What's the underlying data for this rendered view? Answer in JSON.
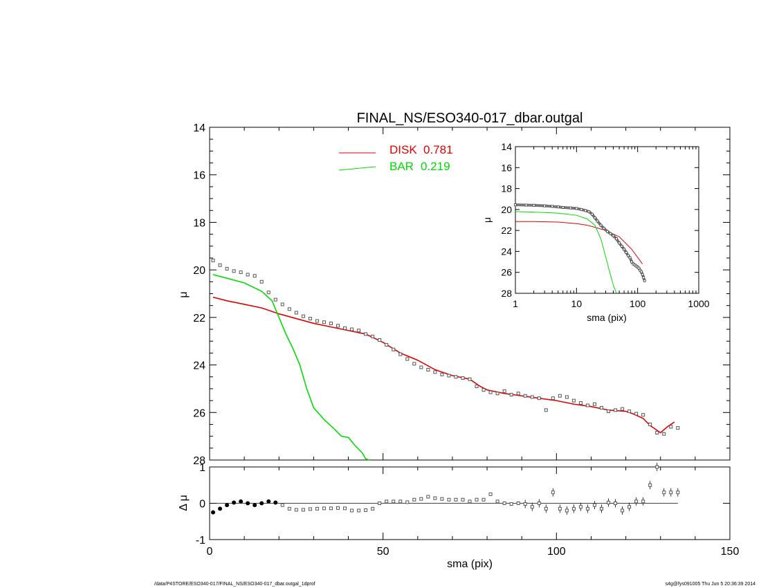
{
  "footer": {
    "path": "/data/P4STORE/ESO340-017/FINAL_NS/ESO340-017_dbar.outgal_1dprof",
    "stamp": "s4g@fys091005  Thu Jun  5 20:36:39 2014"
  },
  "colors": {
    "disk": "#e00000",
    "bar": "#00dd00",
    "data": "#555555",
    "axis": "#000000"
  },
  "chart_data": [
    {
      "type": "line",
      "title": "FINAL_NS/ESO340-017_dbar.outgal",
      "xlabel": "",
      "ylabel": "μ",
      "xlim": [
        0,
        150
      ],
      "ylim": [
        28,
        14
      ],
      "y_inverted": true,
      "yticks": [
        14,
        16,
        18,
        20,
        22,
        24,
        26,
        28
      ],
      "grid": false,
      "legend_position": "top-center",
      "legend": [
        {
          "label": "DISK",
          "value": "0.781",
          "color": "#e00000"
        },
        {
          "label": "BAR",
          "value": "0.219",
          "color": "#00dd00"
        }
      ],
      "series": [
        {
          "name": "DISK",
          "x": [
            1,
            5,
            10,
            15,
            20,
            25,
            30,
            35,
            40,
            45,
            50,
            55,
            60,
            65,
            70,
            75,
            78,
            80,
            85,
            90,
            95,
            100,
            105,
            110,
            115,
            120,
            122,
            125,
            127,
            130,
            132,
            134
          ],
          "y": [
            21.15,
            21.3,
            21.45,
            21.6,
            21.85,
            22.05,
            22.25,
            22.4,
            22.55,
            22.7,
            23.05,
            23.5,
            23.8,
            24.2,
            24.45,
            24.6,
            24.9,
            25.05,
            25.2,
            25.3,
            25.4,
            25.5,
            25.65,
            25.75,
            25.9,
            25.95,
            26.05,
            26.25,
            26.55,
            26.85,
            26.6,
            26.4
          ]
        },
        {
          "name": "BAR",
          "x": [
            1,
            5,
            10,
            15,
            18,
            20,
            22,
            24,
            26,
            28,
            30,
            33,
            36,
            38,
            40,
            42,
            44,
            45,
            46
          ],
          "y": [
            20.2,
            20.35,
            20.55,
            20.9,
            21.3,
            22.0,
            22.7,
            23.3,
            24.0,
            25.0,
            25.8,
            26.3,
            26.7,
            27.0,
            27.05,
            27.4,
            27.7,
            27.95,
            28.0
          ]
        },
        {
          "name": "data",
          "x": [
            1,
            3,
            5,
            7,
            9,
            11,
            13,
            15,
            17,
            19,
            21,
            23,
            25,
            27,
            29,
            31,
            33,
            35,
            37,
            39,
            41,
            43,
            45,
            47,
            49,
            51,
            53,
            55,
            57,
            59,
            61,
            63,
            65,
            67,
            69,
            71,
            73,
            75,
            77,
            79,
            81,
            83,
            85,
            87,
            89,
            91,
            93,
            95,
            97,
            99,
            101,
            103,
            105,
            107,
            109,
            111,
            113,
            115,
            117,
            119,
            121,
            123,
            125,
            127,
            129,
            131,
            133,
            135
          ],
          "y": [
            19.6,
            19.8,
            19.95,
            20.05,
            20.1,
            20.2,
            20.25,
            20.5,
            20.95,
            21.25,
            21.45,
            21.65,
            21.8,
            21.95,
            22.05,
            22.15,
            22.2,
            22.25,
            22.35,
            22.45,
            22.5,
            22.55,
            22.7,
            22.8,
            22.95,
            23.15,
            23.35,
            23.55,
            23.75,
            23.95,
            24.1,
            24.2,
            24.3,
            24.4,
            24.45,
            24.5,
            24.55,
            24.6,
            24.9,
            25.05,
            25.15,
            25.2,
            25.1,
            25.25,
            25.2,
            25.3,
            25.35,
            25.4,
            25.9,
            25.4,
            25.3,
            25.35,
            25.5,
            25.6,
            25.7,
            25.65,
            25.8,
            25.95,
            25.9,
            25.85,
            25.95,
            26.05,
            26.1,
            26.5,
            26.85,
            26.9,
            26.6,
            26.65
          ]
        }
      ]
    },
    {
      "type": "scatter",
      "title": "",
      "xlabel": "sma (pix)",
      "ylabel": "Δ μ",
      "xlim": [
        0,
        150
      ],
      "ylim": [
        -1,
        1
      ],
      "xticks": [
        0,
        50,
        100,
        150
      ],
      "yticks": [
        -1,
        0,
        1
      ],
      "grid": false,
      "series": [
        {
          "name": "residual",
          "x": [
            1,
            3,
            5,
            7,
            9,
            11,
            13,
            15,
            17,
            19,
            21,
            23,
            25,
            27,
            29,
            31,
            33,
            35,
            37,
            39,
            41,
            43,
            45,
            47,
            49,
            51,
            53,
            55,
            57,
            59,
            61,
            63,
            65,
            67,
            69,
            71,
            73,
            75,
            77,
            79,
            81,
            83,
            85,
            87,
            89,
            91,
            93,
            95,
            97,
            99,
            101,
            103,
            105,
            107,
            109,
            111,
            113,
            115,
            117,
            119,
            121,
            123,
            125,
            127,
            129,
            131,
            133,
            135
          ],
          "y": [
            -0.25,
            -0.15,
            -0.05,
            0.02,
            0.05,
            0.0,
            -0.05,
            0.0,
            0.05,
            0.02,
            -0.05,
            -0.15,
            -0.18,
            -0.18,
            -0.16,
            -0.15,
            -0.14,
            -0.14,
            -0.13,
            -0.14,
            -0.2,
            -0.2,
            -0.19,
            -0.15,
            0.0,
            0.05,
            0.05,
            0.05,
            0.03,
            0.1,
            0.12,
            0.18,
            0.14,
            0.12,
            0.1,
            0.1,
            0.1,
            0.05,
            0.1,
            0.1,
            0.25,
            0.05,
            0.0,
            -0.02,
            0.0,
            -0.02,
            -0.1,
            0.0,
            -0.15,
            0.3,
            -0.15,
            -0.2,
            -0.15,
            -0.1,
            -0.15,
            -0.05,
            -0.15,
            0.02,
            0.0,
            -0.2,
            -0.1,
            0.05,
            0.05,
            0.5,
            1.0,
            0.3,
            0.3,
            0.3
          ]
        }
      ]
    },
    {
      "type": "line",
      "title": "",
      "xlabel": "sma (pix)",
      "ylabel": "μ",
      "x_scale": "log",
      "xlim": [
        1,
        1000
      ],
      "ylim": [
        28,
        14
      ],
      "y_inverted": true,
      "xticks": [
        1,
        10,
        100,
        1000
      ],
      "yticks": [
        14,
        16,
        18,
        20,
        22,
        24,
        26,
        28
      ],
      "grid": false,
      "series": [
        {
          "name": "DISK",
          "x": [
            1,
            2,
            5,
            10,
            15,
            20,
            30,
            50,
            80,
            120
          ],
          "y": [
            21.15,
            21.15,
            21.2,
            21.35,
            21.5,
            21.7,
            22.0,
            22.6,
            23.8,
            25.2
          ]
        },
        {
          "name": "BAR",
          "x": [
            1,
            2,
            5,
            10,
            15,
            20,
            25,
            30,
            35,
            40,
            45
          ],
          "y": [
            20.2,
            20.25,
            20.35,
            20.55,
            20.9,
            21.5,
            22.8,
            24.5,
            26.0,
            27.2,
            28.0
          ]
        },
        {
          "name": "data",
          "x": [
            1,
            1.5,
            2,
            3,
            4,
            5,
            6,
            8,
            10,
            12,
            14,
            16,
            18,
            20,
            22,
            25,
            28,
            32,
            36,
            40,
            45,
            50,
            55,
            60,
            65,
            70,
            75,
            80,
            85,
            90,
            95,
            100,
            105,
            110,
            115,
            120,
            125,
            130
          ],
          "y": [
            19.55,
            19.58,
            19.6,
            19.65,
            19.7,
            19.75,
            19.8,
            19.85,
            19.9,
            20.0,
            20.1,
            20.2,
            20.45,
            20.8,
            21.1,
            21.5,
            21.8,
            22.1,
            22.3,
            22.5,
            22.8,
            23.2,
            23.5,
            23.8,
            24.1,
            24.4,
            24.6,
            25.0,
            25.2,
            25.3,
            25.4,
            25.5,
            25.6,
            25.8,
            25.95,
            26.2,
            26.5,
            26.8
          ]
        }
      ]
    }
  ]
}
